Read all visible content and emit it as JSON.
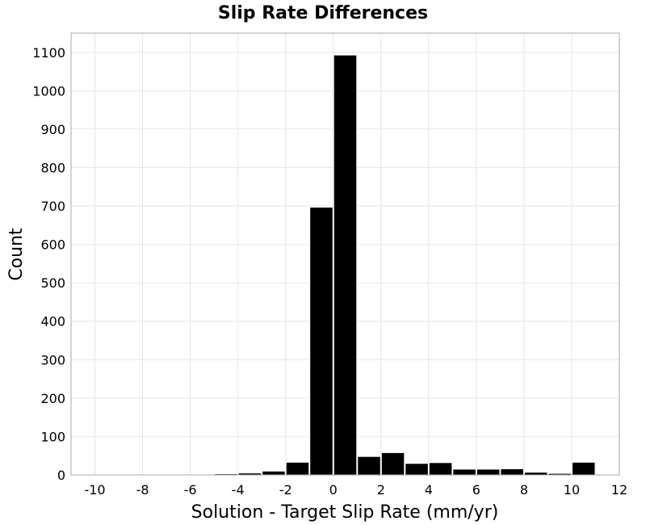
{
  "chart_data": {
    "type": "bar",
    "title": "Slip Rate Differences",
    "xlabel": "Solution - Target Slip Rate (mm/yr)",
    "ylabel": "Count",
    "xlim": [
      -11,
      12
    ],
    "ylim": [
      0,
      1150
    ],
    "xticks": [
      -10,
      -8,
      -6,
      -4,
      -2,
      0,
      2,
      4,
      6,
      8,
      10,
      12
    ],
    "yticks": [
      0,
      100,
      200,
      300,
      400,
      500,
      600,
      700,
      800,
      900,
      1000,
      1100
    ],
    "grid": true,
    "bar_color": "#000000",
    "bins": [
      {
        "x0": -5,
        "x1": -4,
        "value": 3
      },
      {
        "x0": -4,
        "x1": -3,
        "value": 5
      },
      {
        "x0": -3,
        "x1": -2,
        "value": 10
      },
      {
        "x0": -2,
        "x1": -1,
        "value": 33
      },
      {
        "x0": -1,
        "x1": 0,
        "value": 697
      },
      {
        "x0": 0,
        "x1": 1,
        "value": 1093
      },
      {
        "x0": 1,
        "x1": 2,
        "value": 48
      },
      {
        "x0": 2,
        "x1": 3,
        "value": 58
      },
      {
        "x0": 3,
        "x1": 4,
        "value": 30
      },
      {
        "x0": 4,
        "x1": 5,
        "value": 32
      },
      {
        "x0": 5,
        "x1": 6,
        "value": 15
      },
      {
        "x0": 6,
        "x1": 7,
        "value": 15
      },
      {
        "x0": 7,
        "x1": 8,
        "value": 16
      },
      {
        "x0": 8,
        "x1": 9,
        "value": 7
      },
      {
        "x0": 9,
        "x1": 10,
        "value": 4
      },
      {
        "x0": 10,
        "x1": 11,
        "value": 33
      }
    ]
  }
}
